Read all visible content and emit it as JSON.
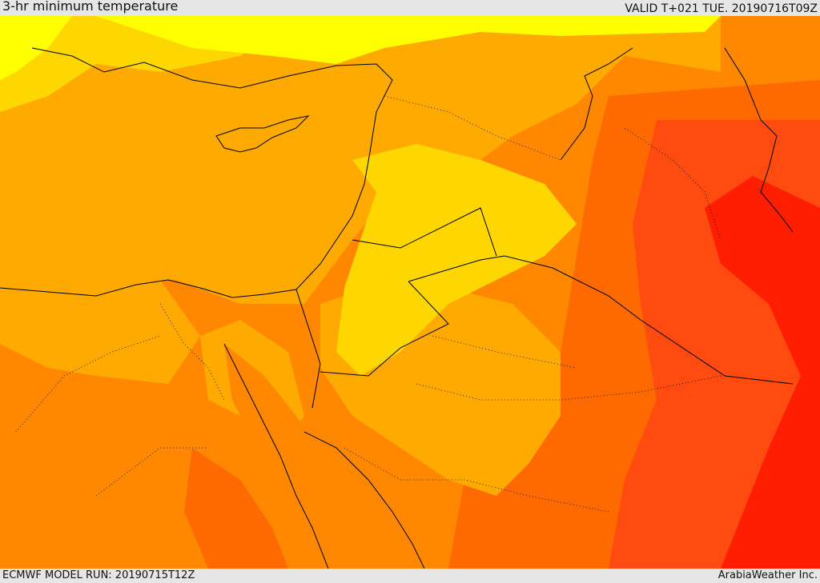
{
  "header": {
    "title": "3-hr minimum temperature",
    "valid": "VALID T+021 TUE. 20190716T09Z"
  },
  "footer": {
    "model_run": "ECMWF MODEL RUN: 20190715T12Z",
    "credit": "ArabiaWeather Inc."
  },
  "palette": {
    "sea": "#ffaa00",
    "warm_yellow": "#ffd700",
    "bright_yellow": "#ffff00",
    "orange": "#ff8800",
    "dark_orange": "#ff6a00",
    "red_orange": "#ff4a10",
    "red": "#ff1e00",
    "border_line": "#000000"
  }
}
